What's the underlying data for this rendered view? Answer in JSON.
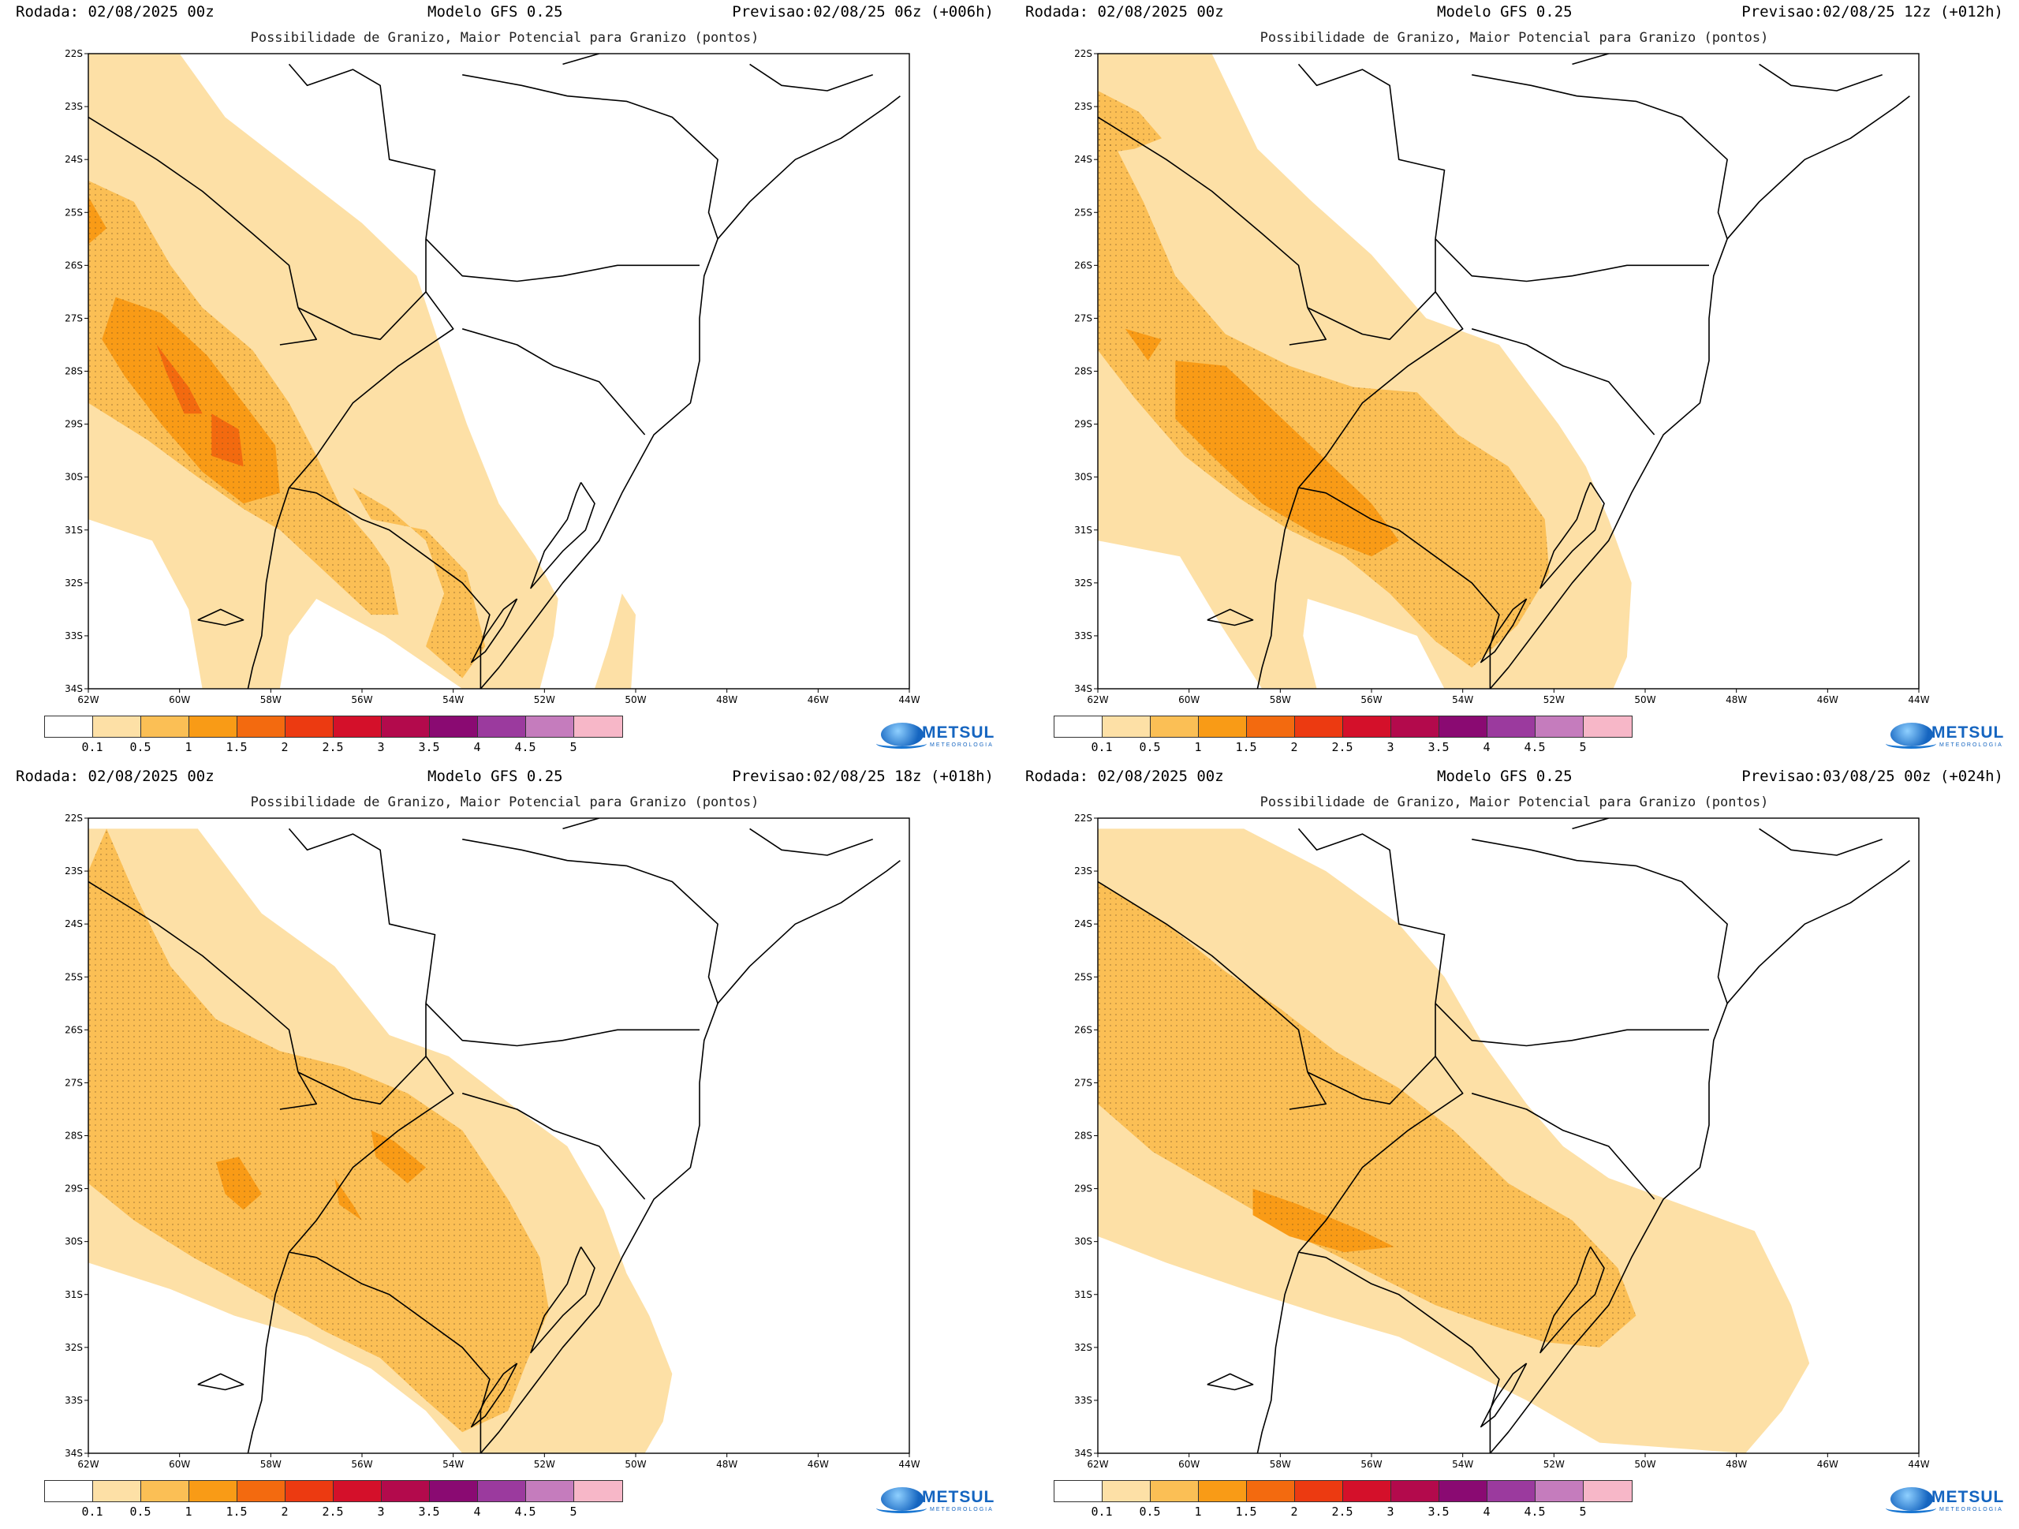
{
  "model": "Modelo GFS 0.25",
  "subtitle": "Possibilidade de Granizo, Maior Potencial para Granizo (pontos)",
  "run_label": "Rodada: 02/08/2025 00z",
  "panels": [
    {
      "rodada": "Rodada: 02/08/2025 00z",
      "modelo": "Modelo GFS 0.25",
      "previsao": "Previsao:02/08/25 06z (+006h)",
      "subtitle": "Possibilidade de Granizo, Maior Potencial para Granizo (pontos)"
    },
    {
      "rodada": "Rodada: 02/08/2025 00z",
      "modelo": "Modelo GFS 0.25",
      "previsao": "Previsao:02/08/25 12z (+012h)",
      "subtitle": "Possibilidade de Granizo, Maior Potencial para Granizo (pontos)"
    },
    {
      "rodada": "Rodada: 02/08/2025 00z",
      "modelo": "Modelo GFS 0.25",
      "previsao": "Previsao:02/08/25 18z (+018h)",
      "subtitle": "Possibilidade de Granizo, Maior Potencial para Granizo (pontos)"
    },
    {
      "rodada": "Rodada: 02/08/2025 00z",
      "modelo": "Modelo GFS 0.25",
      "previsao": "Previsao:03/08/25 00z (+024h)",
      "subtitle": "Possibilidade de Granizo, Maior Potencial para Granizo (pontos)"
    }
  ],
  "lat_ticks": [
    "22S",
    "23S",
    "24S",
    "25S",
    "26S",
    "27S",
    "28S",
    "29S",
    "30S",
    "31S",
    "32S",
    "33S",
    "34S"
  ],
  "lon_ticks": [
    "62W",
    "60W",
    "58W",
    "56W",
    "54W",
    "52W",
    "50W",
    "48W",
    "46W",
    "44W"
  ],
  "colorbar": {
    "colors": [
      "#ffffff",
      "#fde0a6",
      "#fbbf55",
      "#f99b16",
      "#f36a0f",
      "#ec3a11",
      "#d4102a",
      "#b30a4c",
      "#8a0a72",
      "#9b3a9e",
      "#c57cbd",
      "#f7b7c8"
    ],
    "labels": [
      "0.1",
      "0.5",
      "1",
      "1.5",
      "2",
      "2.5",
      "3",
      "3.5",
      "4",
      "4.5",
      "5"
    ]
  },
  "logo": {
    "text": "METSUL",
    "sub": "METEOROLOGIA"
  },
  "colors": {
    "light": "#fde0a6",
    "mid": "#fbbf55",
    "strong": "#f99b16",
    "stronger": "#f36a0f",
    "coast": "#000000"
  }
}
